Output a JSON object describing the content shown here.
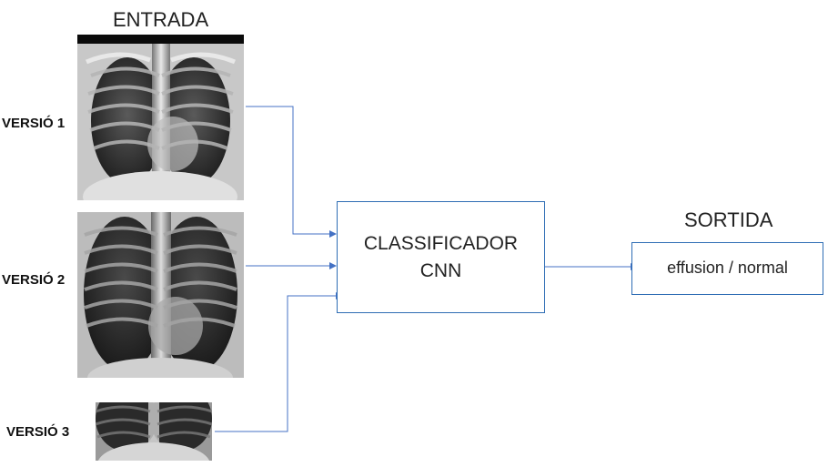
{
  "input_title": "ENTRADA",
  "output_title": "SORTIDA",
  "versions": [
    {
      "label": "VERSIÓ 1"
    },
    {
      "label": "VERSIÓ 2"
    },
    {
      "label": "VERSIÓ 3"
    }
  ],
  "classifier": {
    "line1": "CLASSIFICADOR",
    "line2": "CNN"
  },
  "output": {
    "label": "effusion / normal"
  },
  "colors": {
    "connector": "#4472c4",
    "box_border": "#2e6db4"
  }
}
